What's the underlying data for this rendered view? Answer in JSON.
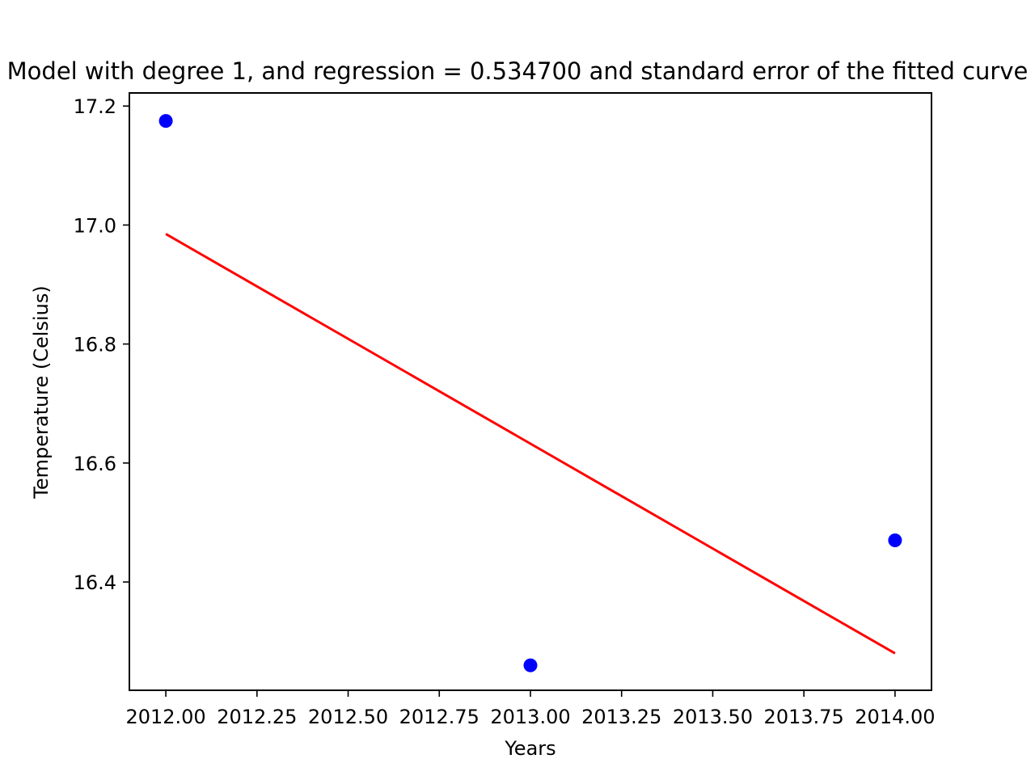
{
  "chart_data": {
    "type": "scatter",
    "title": "Model with degree 1, and regression = 0.534700 and standard error of the fitted curve",
    "xlabel": "Years",
    "ylabel": "Temperature (Celsius)",
    "xlim": [
      2011.9,
      2014.1
    ],
    "ylim": [
      16.218,
      17.222
    ],
    "x_ticks": [
      2012.0,
      2012.25,
      2012.5,
      2012.75,
      2013.0,
      2013.25,
      2013.5,
      2013.75,
      2014.0
    ],
    "x_tick_labels": [
      "2012.00",
      "2012.25",
      "2012.50",
      "2012.75",
      "2013.00",
      "2013.25",
      "2013.50",
      "2013.75",
      "2014.00"
    ],
    "y_ticks": [
      16.4,
      16.6,
      16.8,
      17.0,
      17.2
    ],
    "y_tick_labels": [
      "16.4",
      "16.6",
      "16.8",
      "17.0",
      "17.2"
    ],
    "grid": false,
    "series": [
      {
        "kind": "points",
        "color": "#0000ff",
        "x": [
          2012,
          2013,
          2014
        ],
        "y": [
          17.175,
          16.26,
          16.47
        ]
      },
      {
        "kind": "line",
        "color": "#ff0000",
        "x": [
          2012,
          2014
        ],
        "y": [
          16.985,
          16.28
        ]
      }
    ]
  }
}
